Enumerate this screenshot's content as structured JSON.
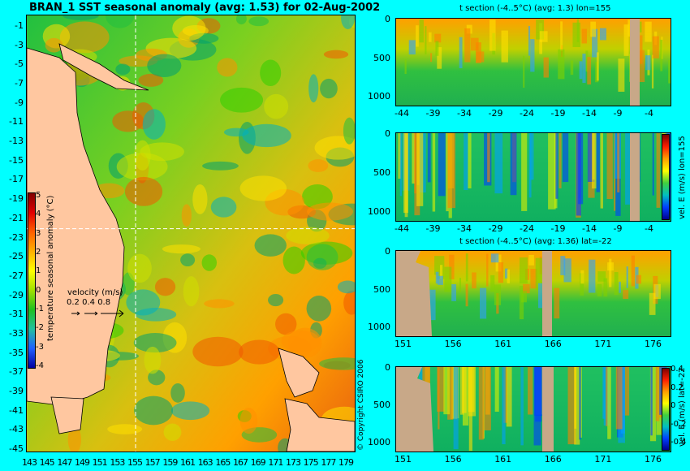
{
  "chart_data": [
    {
      "type": "heatmap",
      "title": "BRAN_1 SST seasonal anomaly (avg: 1.53) for 02-Aug-2002",
      "y_ticks": [
        "-1",
        "-3",
        "-5",
        "-7",
        "-9",
        "-11",
        "-13",
        "-15",
        "-17",
        "-19",
        "-21",
        "-23",
        "-25",
        "-27",
        "-29",
        "-31",
        "-33",
        "-35",
        "-37",
        "-39",
        "-41",
        "-43",
        "-45"
      ],
      "x_ticks": [
        "143",
        "145",
        "147",
        "149",
        "151",
        "153",
        "155",
        "157",
        "159",
        "161",
        "163",
        "165",
        "167",
        "169",
        "171",
        "173",
        "175",
        "177",
        "179"
      ],
      "colorbar": {
        "label": "temperature seasonal anomaly (°C)",
        "ticks": [
          "5",
          "4",
          "3",
          "2",
          "1",
          "0",
          "-1",
          "-2",
          "-3",
          "-4"
        ],
        "range": [
          -4,
          5
        ]
      },
      "legend": {
        "label": "velocity (m/s)",
        "values": [
          "0.2",
          "0.4",
          "0.8"
        ]
      },
      "crosshair": {
        "lon": 155,
        "lat": -22
      }
    },
    {
      "type": "heatmap",
      "title": "t section (-4..5°C) (avg: 1.3) lon=155",
      "x_ticks": [
        "-44",
        "-39",
        "-34",
        "-29",
        "-24",
        "-19",
        "-14",
        "-9",
        "-4"
      ],
      "y_ticks": [
        "0",
        "500",
        "1000"
      ]
    },
    {
      "type": "heatmap",
      "title": "",
      "x_ticks": [
        "-44",
        "-39",
        "-34",
        "-29",
        "-24",
        "-19",
        "-14",
        "-9",
        "-4"
      ],
      "y_ticks": [
        "0",
        "500",
        "1000"
      ],
      "colorbar": {
        "label": "vel. E (m/s) lon=155"
      }
    },
    {
      "type": "heatmap",
      "title": "t section (-4..5°C) (avg: 1.36) lat=-22",
      "x_ticks": [
        "151",
        "156",
        "161",
        "166",
        "171",
        "176"
      ],
      "y_ticks": [
        "0",
        "500",
        "1000"
      ]
    },
    {
      "type": "heatmap",
      "title": "",
      "x_ticks": [
        "151",
        "156",
        "161",
        "166",
        "171",
        "176"
      ],
      "y_ticks": [
        "0",
        "500",
        "1000"
      ],
      "colorbar": {
        "label": "vel. E (m/s) lat=-22",
        "ticks": [
          "0.4",
          "0.2",
          "0",
          "-0.2",
          "-0.4"
        ],
        "range": [
          -0.4,
          0.4
        ]
      }
    }
  ],
  "copyright": "© Copyright CSIRO 2006"
}
